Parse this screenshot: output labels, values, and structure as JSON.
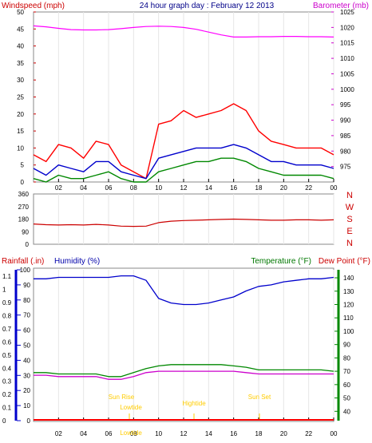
{
  "chart_data": [
    {
      "type": "line",
      "title": "24 hour graph day : February 12 2013",
      "left_label": "Windspeed (mph)",
      "right_label": "Barometer (mb)",
      "ylim": [
        0,
        50
      ],
      "y2lim": [
        970,
        1025
      ],
      "yticks": [
        "0",
        "5",
        "10",
        "15",
        "20",
        "25",
        "30",
        "35",
        "40",
        "45",
        "50"
      ],
      "y2ticks": [
        "975",
        "980",
        "985",
        "990",
        "995",
        "1000",
        "1005",
        "1010",
        "1015",
        "1020",
        "1025"
      ],
      "xticks": [
        "02",
        "04",
        "06",
        "08",
        "10",
        "12",
        "14",
        "16",
        "18",
        "20",
        "22",
        "00"
      ],
      "colors": {
        "gust": "#ff0000",
        "avg": "#0000cc",
        "wind": "#008800",
        "barometer": "#ff00ff"
      },
      "series": [
        {
          "key": "gust",
          "x": [
            0,
            1,
            2,
            3,
            4,
            5,
            6,
            7,
            8,
            9,
            10,
            11,
            12,
            13,
            14,
            15,
            16,
            17,
            18,
            19,
            20,
            21,
            22,
            23,
            24
          ],
          "values": [
            8,
            6,
            11,
            10,
            7,
            12,
            11,
            5,
            3,
            1,
            17,
            18,
            21,
            19,
            20,
            21,
            23,
            21,
            15,
            12,
            11,
            10,
            10,
            10,
            8
          ]
        },
        {
          "key": "avg",
          "x": [
            0,
            1,
            2,
            3,
            4,
            5,
            6,
            7,
            8,
            9,
            10,
            11,
            12,
            13,
            14,
            15,
            16,
            17,
            18,
            19,
            20,
            21,
            22,
            23,
            24
          ],
          "values": [
            4,
            2,
            5,
            4,
            3,
            6,
            6,
            3,
            2,
            1,
            7,
            8,
            9,
            10,
            10,
            10,
            11,
            10,
            8,
            6,
            6,
            5,
            5,
            5,
            4
          ]
        },
        {
          "key": "wind",
          "x": [
            0,
            1,
            2,
            3,
            4,
            5,
            6,
            7,
            8,
            9,
            10,
            11,
            12,
            13,
            14,
            15,
            16,
            17,
            18,
            19,
            20,
            21,
            22,
            23,
            24
          ],
          "values": [
            1,
            0,
            2,
            1,
            1,
            2,
            3,
            1,
            0,
            0,
            3,
            4,
            5,
            6,
            6,
            7,
            7,
            6,
            4,
            3,
            2,
            2,
            2,
            2,
            1
          ]
        },
        {
          "key": "barometer",
          "axis": "right",
          "x": [
            0,
            1,
            2,
            3,
            4,
            5,
            6,
            7,
            8,
            9,
            10,
            11,
            12,
            13,
            14,
            15,
            16,
            17,
            18,
            19,
            20,
            21,
            22,
            23,
            24
          ],
          "values": [
            1020.5,
            1020.2,
            1019.7,
            1019.3,
            1019.2,
            1019.2,
            1019.3,
            1019.6,
            1020,
            1020.3,
            1020.4,
            1020.3,
            1020,
            1019.4,
            1018.5,
            1017.6,
            1016.9,
            1016.9,
            1017,
            1017,
            1017.1,
            1017.1,
            1017,
            1017,
            1016.9
          ]
        }
      ]
    },
    {
      "type": "line",
      "right_labels": [
        "N",
        "W",
        "S",
        "E",
        "N"
      ],
      "ylim": [
        0,
        360
      ],
      "yticks": [
        "0",
        "90",
        "180",
        "270",
        "360"
      ],
      "xticks": [
        "02",
        "04",
        "06",
        "08",
        "10",
        "12",
        "14",
        "16",
        "18",
        "20",
        "22",
        "00"
      ],
      "colors": {
        "direction": "#cc0000"
      },
      "series": [
        {
          "key": "direction",
          "x": [
            0,
            1,
            2,
            3,
            4,
            5,
            6,
            7,
            8,
            9,
            10,
            11,
            12,
            13,
            14,
            15,
            16,
            17,
            18,
            19,
            20,
            21,
            22,
            23,
            24
          ],
          "values": [
            145,
            140,
            138,
            140,
            138,
            142,
            138,
            130,
            128,
            130,
            155,
            165,
            170,
            172,
            175,
            178,
            180,
            178,
            175,
            172,
            172,
            175,
            175,
            172,
            175
          ]
        }
      ]
    },
    {
      "type": "line",
      "left_label_rain": "Rainfall (.in)",
      "left_label_humidity": "Humidity (%)",
      "right_label_temp": "Temperature (°F)",
      "right_label_dew": "Dew Point (°F)",
      "rain_ticks": [
        "0",
        "0.1",
        "0.2",
        "0.3",
        "0.4",
        "0.5",
        "0.6",
        "0.7",
        "0.8",
        "0.9",
        "1",
        "1.1"
      ],
      "humidity_ticks": [
        "0",
        "10",
        "20",
        "30",
        "40",
        "50",
        "60",
        "70",
        "80",
        "90",
        "100"
      ],
      "temp_ticks": [
        "40",
        "50",
        "60",
        "70",
        "80",
        "90",
        "100",
        "110",
        "120",
        "130",
        "140"
      ],
      "humidity_lim": [
        0,
        100
      ],
      "temp_lim": [
        33,
        146
      ],
      "xticks": [
        "02",
        "04",
        "06",
        "08",
        "10",
        "12",
        "14",
        "16",
        "18",
        "20",
        "22",
        "00"
      ],
      "colors": {
        "humidity": "#0000cc",
        "temperature": "#008800",
        "dew": "#cc00cc",
        "rain": "#ff0000",
        "annotation": "#ffcc00"
      },
      "annotations": [
        "Sun Rise",
        "Lowtide",
        "Lowtide",
        "Hightide",
        "Sun Set"
      ],
      "series": [
        {
          "key": "humidity",
          "x": [
            0,
            1,
            2,
            3,
            4,
            5,
            6,
            7,
            8,
            9,
            10,
            11,
            12,
            13,
            14,
            15,
            16,
            17,
            18,
            19,
            20,
            21,
            22,
            23,
            24
          ],
          "values": [
            94,
            94,
            95,
            95,
            95,
            95,
            95,
            96,
            96,
            93,
            81,
            78,
            77,
            77,
            78,
            80,
            82,
            86,
            89,
            90,
            92,
            93,
            94,
            94,
            95
          ]
        },
        {
          "key": "temperature",
          "x": [
            0,
            1,
            2,
            3,
            4,
            5,
            6,
            7,
            8,
            9,
            10,
            11,
            12,
            13,
            14,
            15,
            16,
            17,
            18,
            19,
            20,
            21,
            22,
            23,
            24
          ],
          "values": [
            69,
            69,
            68,
            68,
            68,
            68,
            66,
            66,
            69,
            72,
            74,
            75,
            75,
            75,
            75,
            75,
            74,
            73,
            71,
            71,
            71,
            71,
            71,
            71,
            70
          ]
        },
        {
          "key": "dew",
          "x": [
            0,
            1,
            2,
            3,
            4,
            5,
            6,
            7,
            8,
            9,
            10,
            11,
            12,
            13,
            14,
            15,
            16,
            17,
            18,
            19,
            20,
            21,
            22,
            23,
            24
          ],
          "values": [
            67,
            67,
            66,
            66,
            66,
            66,
            64,
            64,
            66,
            69,
            70,
            70,
            70,
            70,
            70,
            70,
            70,
            69,
            68,
            68,
            68,
            68,
            68,
            68,
            68
          ]
        },
        {
          "key": "rain",
          "x": [
            0,
            24
          ],
          "values": [
            0,
            0
          ]
        }
      ]
    }
  ]
}
